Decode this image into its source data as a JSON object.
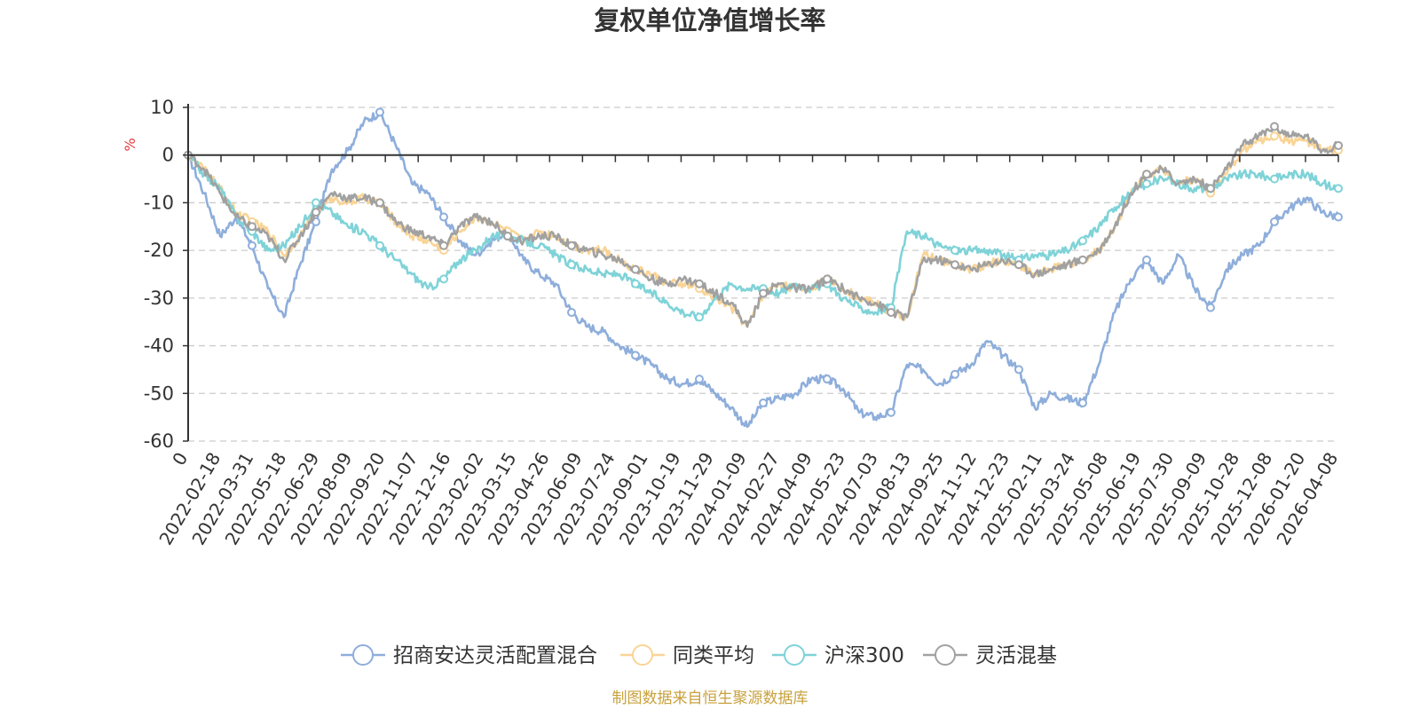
{
  "chart_data": {
    "type": "line",
    "title": "复权单位净值增长率",
    "ylabel": "%",
    "ylim": [
      -60,
      10
    ],
    "yticks": [
      10,
      0,
      -10,
      -20,
      -30,
      -40,
      -50,
      -60
    ],
    "grid": true,
    "legend_position": "bottom",
    "source": "制图数据来自恒生聚源数据库",
    "x_start": "2022-01-04",
    "x_end": "2026-04-08",
    "xtick_labels": [
      "0",
      "2022-02-18",
      "2022-03-31",
      "2022-05-18",
      "2022-06-29",
      "2022-08-09",
      "2022-09-20",
      "2022-11-07",
      "2022-12-16",
      "2023-02-02",
      "2023-03-15",
      "2023-04-26",
      "2023-06-09",
      "2023-07-24",
      "2023-09-01",
      "2023-10-19",
      "2023-11-29",
      "2024-01-09",
      "2024-02-27",
      "2024-04-09",
      "2024-05-23",
      "2024-07-03",
      "2024-08-13",
      "2024-09-25",
      "2024-11-12",
      "2024-12-23",
      "2025-02-11",
      "2025-03-24",
      "2025-05-08",
      "2025-06-19",
      "2025-07-30",
      "2025-09-09",
      "2025-10-28",
      "2025-12-08",
      "2026-01-20",
      "2026-04-08"
    ],
    "series": [
      {
        "name": "招商安达灵活配置混合",
        "color": "#8eaedb",
        "values": [
          0,
          -8,
          -17,
          -13,
          -19,
          -28,
          -34,
          -23,
          -14,
          -3,
          1,
          7,
          9,
          2,
          -6,
          -8,
          -13,
          -18,
          -21,
          -18,
          -16,
          -22,
          -25,
          -27,
          -33,
          -36,
          -37,
          -40,
          -42,
          -44,
          -47,
          -48,
          -47,
          -50,
          -53,
          -57,
          -52,
          -51,
          -50,
          -47,
          -47,
          -49,
          -54,
          -55,
          -54,
          -44,
          -45,
          -48,
          -46,
          -44,
          -39,
          -42,
          -45,
          -53,
          -50,
          -51,
          -52,
          -44,
          -33,
          -26,
          -22,
          -27,
          -21,
          -28,
          -32,
          -24,
          -21,
          -19,
          -14,
          -11,
          -9,
          -12,
          -13
        ]
      },
      {
        "name": "同类平均",
        "color": "#f9d496",
        "values": [
          0,
          -3,
          -7,
          -12,
          -14,
          -16,
          -21,
          -17,
          -12,
          -9,
          -10,
          -9,
          -10,
          -14,
          -17,
          -18,
          -20,
          -16,
          -13,
          -14,
          -16,
          -18,
          -16,
          -17,
          -19,
          -20,
          -20,
          -22,
          -24,
          -25,
          -27,
          -27,
          -28,
          -30,
          -32,
          -36,
          -29,
          -27,
          -28,
          -28,
          -26,
          -28,
          -30,
          -31,
          -33,
          -34,
          -21,
          -22,
          -23,
          -24,
          -23,
          -22,
          -23,
          -25,
          -24,
          -23,
          -22,
          -20,
          -15,
          -8,
          -4,
          -3,
          -6,
          -5,
          -8,
          -4,
          1,
          3,
          4,
          3,
          3,
          1,
          1
        ]
      },
      {
        "name": "沪深300",
        "color": "#7fd3d8",
        "values": [
          0,
          -4,
          -7,
          -13,
          -16,
          -20,
          -19,
          -15,
          -10,
          -12,
          -15,
          -16,
          -19,
          -22,
          -25,
          -28,
          -26,
          -22,
          -20,
          -17,
          -17,
          -18,
          -19,
          -21,
          -23,
          -24,
          -25,
          -25,
          -27,
          -29,
          -31,
          -33,
          -34,
          -30,
          -27,
          -28,
          -28,
          -29,
          -27,
          -28,
          -27,
          -30,
          -32,
          -33,
          -32,
          -16,
          -17,
          -19,
          -20,
          -20,
          -20,
          -21,
          -22,
          -21,
          -21,
          -20,
          -18,
          -15,
          -11,
          -8,
          -6,
          -5,
          -6,
          -7,
          -7,
          -5,
          -4,
          -4,
          -5,
          -4,
          -4,
          -6,
          -7
        ]
      },
      {
        "name": "灵活混基",
        "color": "#a1a1a1",
        "values": [
          0,
          -3,
          -8,
          -13,
          -15,
          -17,
          -22,
          -17,
          -12,
          -8,
          -9,
          -9,
          -10,
          -14,
          -16,
          -17,
          -19,
          -15,
          -13,
          -14,
          -17,
          -18,
          -17,
          -17,
          -19,
          -20,
          -21,
          -22,
          -24,
          -26,
          -27,
          -26,
          -27,
          -29,
          -31,
          -36,
          -29,
          -27,
          -28,
          -28,
          -26,
          -28,
          -30,
          -31,
          -33,
          -34,
          -22,
          -22,
          -23,
          -24,
          -23,
          -22,
          -23,
          -25,
          -24,
          -23,
          -22,
          -20,
          -15,
          -8,
          -4,
          -3,
          -6,
          -5,
          -7,
          -3,
          2,
          4,
          6,
          4,
          4,
          1,
          2
        ]
      }
    ]
  }
}
